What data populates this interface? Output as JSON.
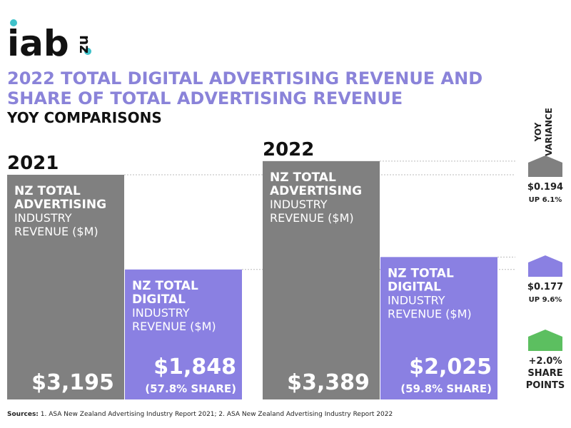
{
  "chart_data": {
    "type": "bar",
    "logo": {
      "text": "iab",
      "suffix": "nz"
    },
    "title": [
      "2022 TOTAL DIGITAL ADVERTISING REVENUE AND",
      "SHARE OF TOTAL ADVERTISING REVENUE"
    ],
    "subtitle": "YOY COMPARISONS",
    "groups": [
      {
        "year": "2021",
        "bars": [
          {
            "label_bold": [
              "NZ TOTAL",
              "ADVERTISING"
            ],
            "label": [
              "INDUSTRY",
              "REVENUE ($M)"
            ],
            "value": 3195,
            "value_label": "$3,195",
            "color": "#808080"
          },
          {
            "label_bold": [
              "NZ TOTAL",
              "DIGITAL"
            ],
            "label": [
              "INDUSTRY",
              "REVENUE ($M)"
            ],
            "value": 1848,
            "value_label": "$1,848",
            "share_label": "(57.8% SHARE)",
            "color": "#8a80e2"
          }
        ]
      },
      {
        "year": "2022",
        "bars": [
          {
            "label_bold": [
              "NZ TOTAL",
              "ADVERTISING"
            ],
            "label": [
              "INDUSTRY",
              "REVENUE ($M)"
            ],
            "value": 3389,
            "value_label": "$3,389",
            "color": "#808080"
          },
          {
            "label_bold": [
              "NZ TOTAL",
              "DIGITAL"
            ],
            "label": [
              "INDUSTRY",
              "REVENUE ($M)"
            ],
            "value": 2025,
            "value_label": "$2,025",
            "share_label": "(59.8% SHARE)",
            "color": "#8a80e2"
          }
        ]
      }
    ],
    "variance_title": [
      "YOY",
      "VARIANCE"
    ],
    "variance": [
      {
        "lines": [
          "$0.194",
          "UP 6.1%"
        ],
        "color": "#808080"
      },
      {
        "lines": [
          "$0.177",
          "UP 9.6%"
        ],
        "color": "#8a80e2"
      },
      {
        "lines": [
          "+2.0%",
          "SHARE",
          "POINTS"
        ],
        "color": "#5cbf60"
      }
    ],
    "source_label": "Sources:",
    "source": "1. ASA New Zealand Advertising Industry Report 2021;  2. ASA New Zealand Advertising Industry Report 2022"
  }
}
